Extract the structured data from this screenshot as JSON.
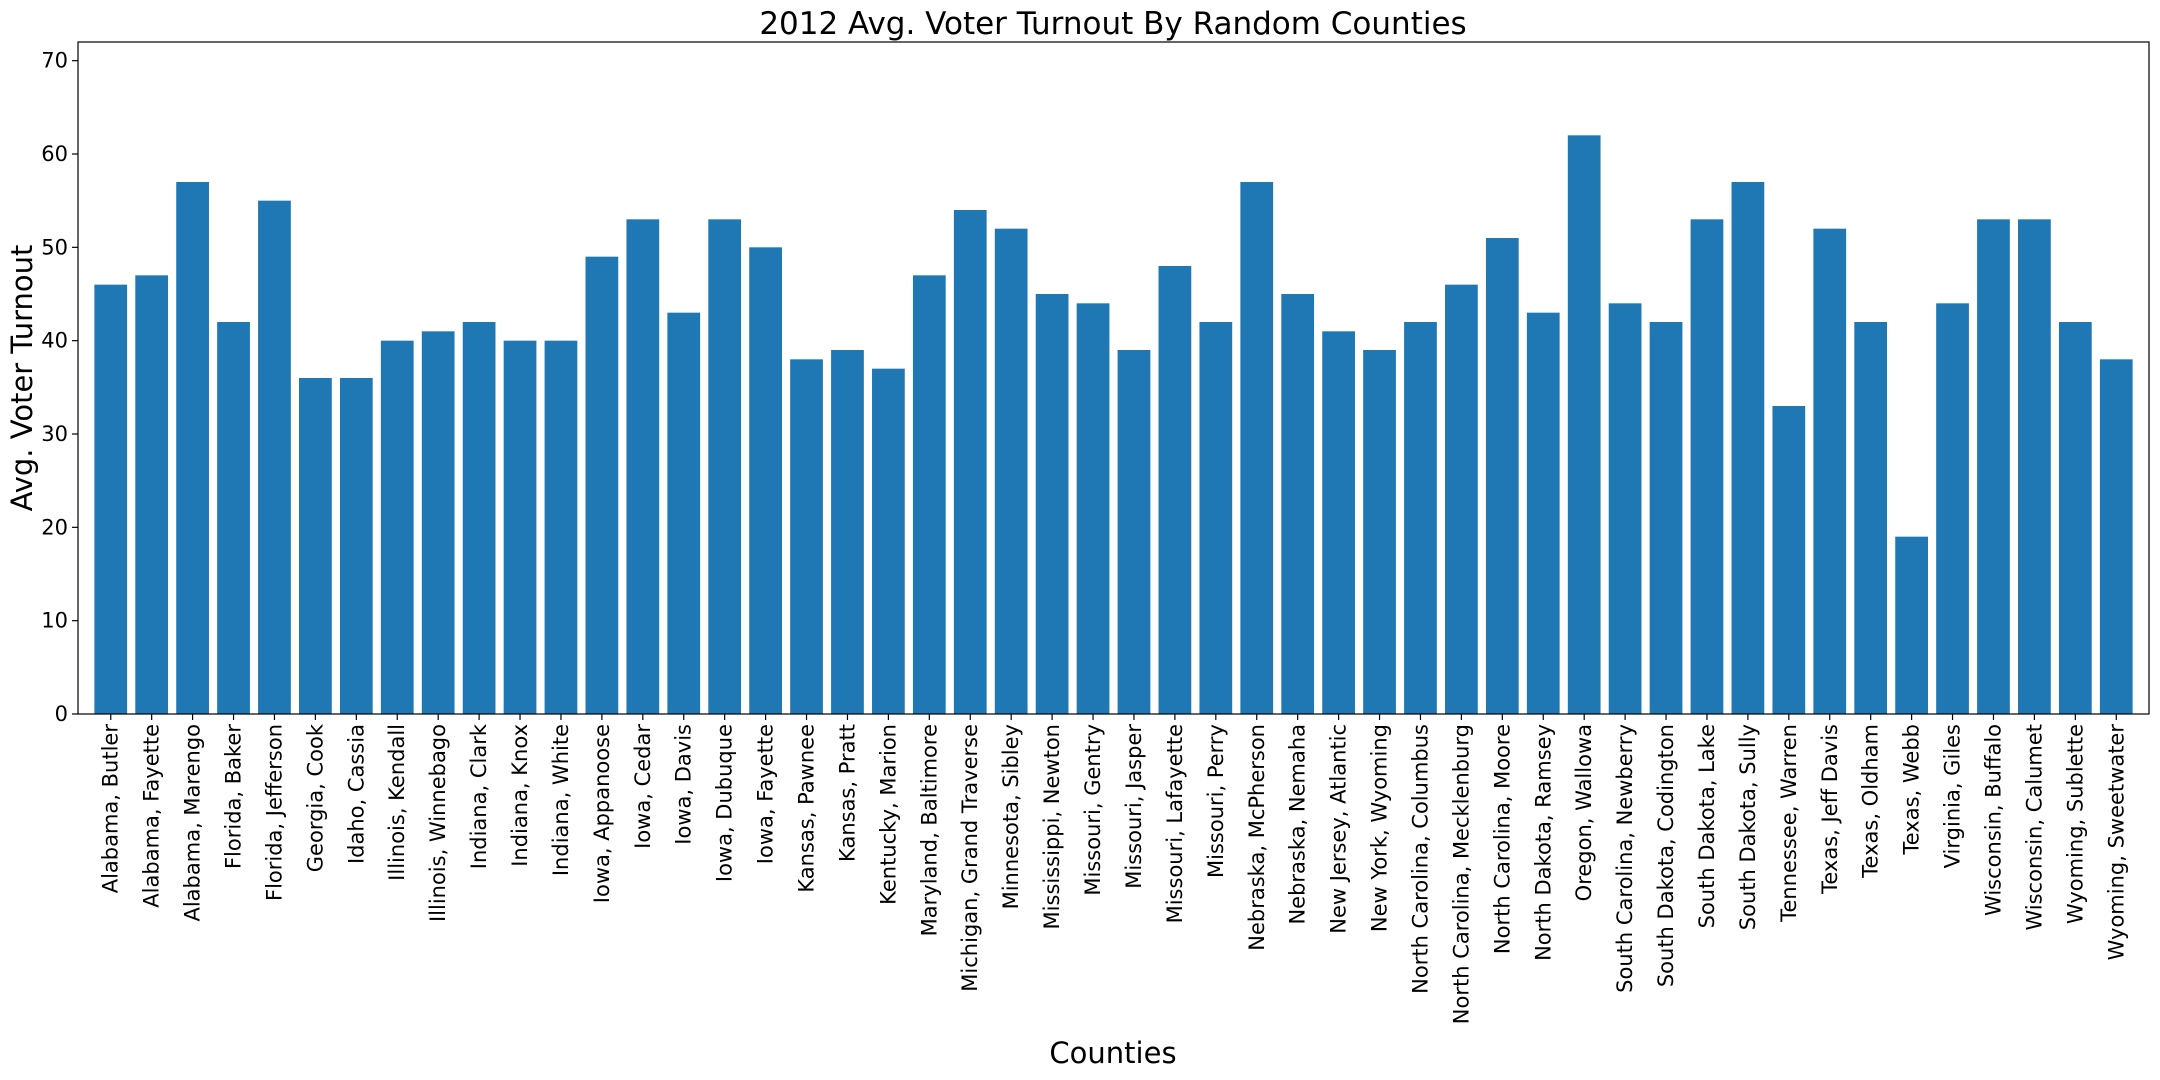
{
  "chart_data": {
    "type": "bar",
    "title": "2012 Avg. Voter Turnout By Random Counties",
    "xlabel": "Counties",
    "ylabel": "Avg. Voter Turnout",
    "ylim": [
      0,
      72
    ],
    "yticks": [
      0,
      10,
      20,
      30,
      40,
      50,
      60,
      70
    ],
    "grid": false,
    "bar_color": "#1f77b4",
    "categories": [
      "Alabama, Butler",
      "Alabama, Fayette",
      "Alabama, Marengo",
      "Florida, Baker",
      "Florida, Jefferson",
      "Georgia, Cook",
      "Idaho, Cassia",
      "Illinois, Kendall",
      "Illinois, Winnebago",
      "Indiana, Clark",
      "Indiana, Knox",
      "Indiana, White",
      "Iowa, Appanoose",
      "Iowa, Cedar",
      "Iowa, Davis",
      "Iowa, Dubuque",
      "Iowa, Fayette",
      "Kansas, Pawnee",
      "Kansas, Pratt",
      "Kentucky, Marion",
      "Maryland, Baltimore",
      "Michigan, Grand Traverse",
      "Minnesota, Sibley",
      "Mississippi, Newton",
      "Missouri, Gentry",
      "Missouri, Jasper",
      "Missouri, Lafayette",
      "Missouri, Perry",
      "Nebraska, McPherson",
      "Nebraska, Nemaha",
      "New Jersey, Atlantic",
      "New York, Wyoming",
      "North Carolina, Columbus",
      "North Carolina, Mecklenburg",
      "North Carolina, Moore",
      "North Dakota, Ramsey",
      "Oregon, Wallowa",
      "South Carolina, Newberry",
      "South Dakota, Codington",
      "South Dakota, Lake",
      "South Dakota, Sully",
      "Tennessee, Warren",
      "Texas, Jeff Davis",
      "Texas, Oldham",
      "Texas, Webb",
      "Virginia, Giles",
      "Wisconsin, Buffalo",
      "Wisconsin, Calumet",
      "Wyoming, Sublette",
      "Wyoming, Sweetwater"
    ],
    "values": [
      46,
      47,
      57,
      42,
      55,
      36,
      36,
      40,
      41,
      42,
      40,
      40,
      49,
      53,
      43,
      53,
      50,
      38,
      39,
      37,
      47,
      54,
      52,
      45,
      44,
      39,
      48,
      42,
      57,
      45,
      41,
      39,
      42,
      46,
      51,
      43,
      62,
      44,
      42,
      53,
      57,
      33,
      52,
      42,
      19,
      44,
      53,
      53,
      42,
      38
    ]
  }
}
